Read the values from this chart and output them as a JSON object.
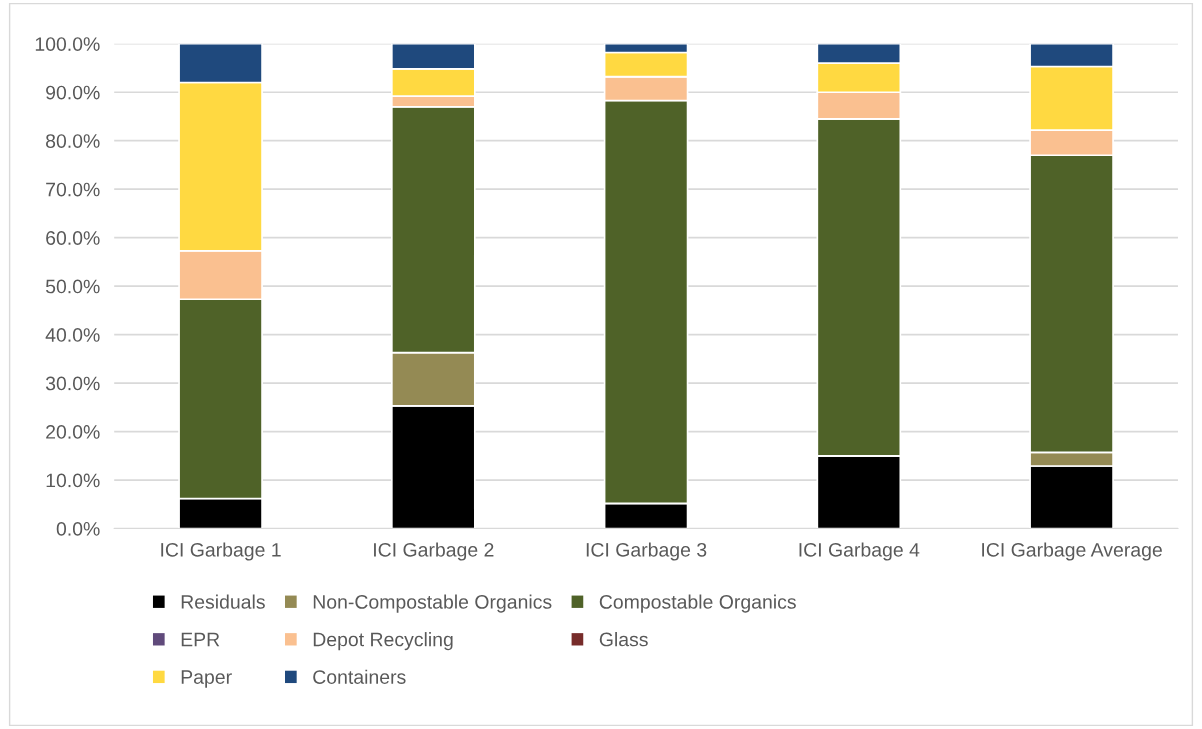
{
  "chart_data": {
    "type": "bar",
    "stacked": true,
    "categories": [
      "ICI Garbage 1",
      "ICI Garbage 2",
      "ICI Garbage 3",
      "ICI Garbage 4",
      "ICI Garbage Average"
    ],
    "series": [
      {
        "name": "Residuals",
        "color": "#000000",
        "values": [
          6.2,
          25.3,
          5.2,
          15.0,
          12.9
        ]
      },
      {
        "name": "Non-Compostable Organics",
        "color": "#948a54",
        "values": [
          0,
          11.0,
          0,
          0,
          2.8
        ]
      },
      {
        "name": "Compostable Organics",
        "color": "#4f6228",
        "values": [
          41.1,
          50.7,
          83.1,
          69.5,
          61.3
        ]
      },
      {
        "name": "EPR",
        "color": "#604a7b",
        "values": [
          0,
          0,
          0,
          0,
          0
        ]
      },
      {
        "name": "Depot Recycling",
        "color": "#fac090",
        "values": [
          10.0,
          2.2,
          4.9,
          5.5,
          5.2
        ]
      },
      {
        "name": "Glass",
        "color": "#772c2a",
        "values": [
          0,
          0,
          0,
          0,
          0
        ]
      },
      {
        "name": "Paper",
        "color": "#ffd941",
        "values": [
          34.7,
          5.6,
          5.0,
          6.0,
          13.1
        ]
      },
      {
        "name": "Containers",
        "color": "#1f497d",
        "values": [
          8.0,
          5.2,
          1.8,
          4.0,
          4.7
        ]
      }
    ],
    "ylim": [
      0,
      100
    ],
    "yticks": [
      {
        "value": 0,
        "label": "0.0%"
      },
      {
        "value": 10,
        "label": "10.0%"
      },
      {
        "value": 20,
        "label": "20.0%"
      },
      {
        "value": 30,
        "label": "30.0%"
      },
      {
        "value": 40,
        "label": "40.0%"
      },
      {
        "value": 50,
        "label": "50.0%"
      },
      {
        "value": 60,
        "label": "60.0%"
      },
      {
        "value": 70,
        "label": "70.0%"
      },
      {
        "value": 80,
        "label": "80.0%"
      },
      {
        "value": 90,
        "label": "90.0%"
      },
      {
        "value": 100,
        "label": "100.0%"
      }
    ],
    "grid": "y",
    "legend": "bottom"
  }
}
